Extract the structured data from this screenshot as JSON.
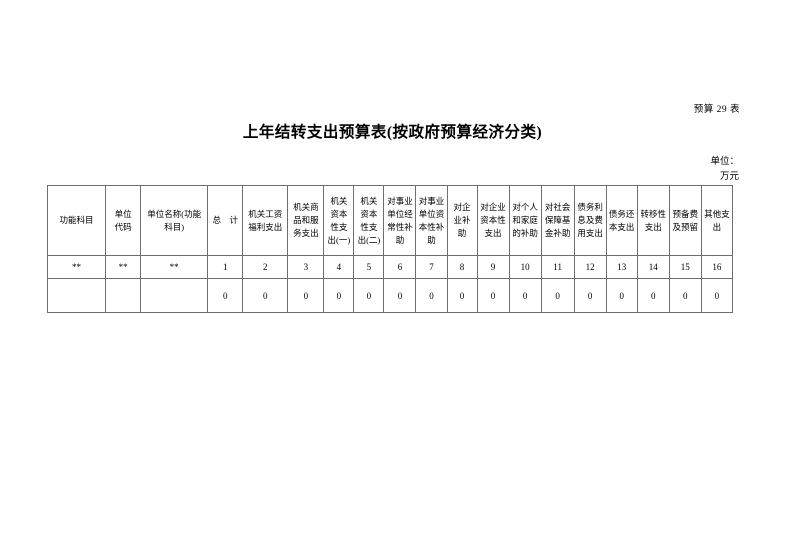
{
  "page": {
    "table_label": "预算 29 表",
    "title": "上年结转支出预算表(按政府预算经济分类)",
    "unit_label": "单位：",
    "unit_value": "万元"
  },
  "table": {
    "headers": [
      "功能科目",
      "单位代码",
      "单位名称(功能科目)",
      "总　计",
      "机关工资福利支出",
      "机关商品和服务支出",
      "机关资本性支出(一)",
      "机关资本性支出(二)",
      "对事业单位经常性补助",
      "对事业单位资本性补助",
      "对企业补助",
      "对企业资本性支出",
      "对个人和家庭的补助",
      "对社会保障基金补助",
      "债务利息及费用支出",
      "债务还本支出",
      "转移性支出",
      "预备费及预留",
      "其他支出"
    ],
    "column_numbers": [
      "**",
      "**",
      "**",
      "1",
      "2",
      "3",
      "4",
      "5",
      "6",
      "7",
      "8",
      "9",
      "10",
      "11",
      "12",
      "13",
      "14",
      "15",
      "16"
    ],
    "values": [
      "",
      "",
      "",
      "0",
      "0",
      "0",
      "0",
      "0",
      "0",
      "0",
      "0",
      "0",
      "0",
      "0",
      "0",
      "0",
      "0",
      "0",
      "0"
    ]
  }
}
